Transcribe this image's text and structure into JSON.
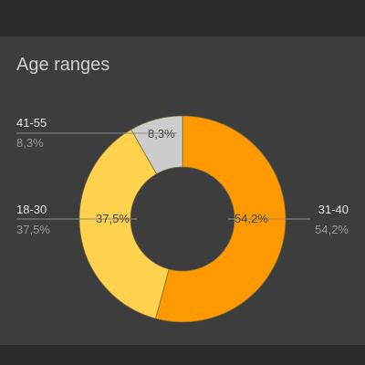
{
  "card": {
    "title": "Age ranges"
  },
  "chart_data": {
    "type": "pie",
    "donut": true,
    "title": "Age ranges",
    "unit": "%",
    "slices": [
      {
        "label": "31-40",
        "value": 54.2,
        "display": "54,2%",
        "color": "#ff9900"
      },
      {
        "label": "18-30",
        "value": 37.5,
        "display": "37,5%",
        "color": "#ffd24d"
      },
      {
        "label": "41-55",
        "value": 8.3,
        "display": "8,3%",
        "color": "#cccccc"
      }
    ],
    "legend_placement": "outside, with leader lines"
  },
  "colors": {
    "background": "#2e2e2e",
    "card": "#3d3d3d",
    "slice_border": "#7a6a40",
    "leader_line": "#8a8a8a"
  }
}
